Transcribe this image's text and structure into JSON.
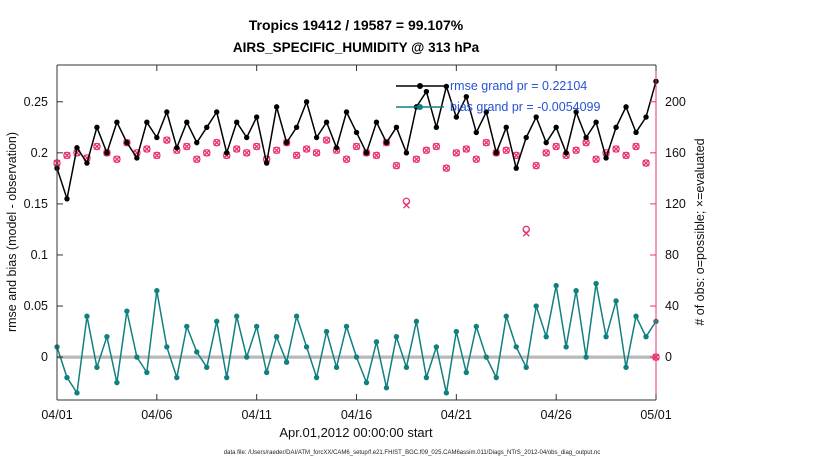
{
  "figure": {
    "footer": "data file: /Users/raeder/DAI/ATM_forcXX/CAM6_setup/f.e21.FHIST_BGC.f09_025.CAM6assim.011/Diags_NTrS_2012-04/obs_diag_output.nc"
  },
  "chart_data": {
    "type": "line",
    "title": "Tropics 19412 / 19587 = 99.107%",
    "subtitle": "AIRS_SPECIFIC_HUMIDITY @ 313 hPa",
    "xlabel": "Apr.01,2012 00:00:00 start",
    "ylabel_left": "rmse and bias (model - observation)",
    "ylabel_right": "# of obs: o=possible; ×=evaluated",
    "xlim_days": [
      0,
      30
    ],
    "x_step_days": 0.5,
    "x_ticks": {
      "days": [
        0,
        5,
        10,
        15,
        20,
        25,
        30
      ],
      "labels": [
        "04/01",
        "04/06",
        "04/11",
        "04/16",
        "04/21",
        "04/26",
        "05/01"
      ]
    },
    "y_left": {
      "ticks": [
        0,
        0.05,
        0.1,
        0.15,
        0.2,
        0.25
      ],
      "labels": [
        "0",
        "0.05",
        "0.1",
        "0.15",
        "0.2",
        "0.25"
      ],
      "lim": [
        -0.042,
        0.286
      ]
    },
    "y_right": {
      "ticks": [
        0,
        40,
        80,
        120,
        160,
        200
      ],
      "labels": [
        "0",
        "40",
        "80",
        "120",
        "160",
        "200"
      ],
      "lim": [
        -33.6,
        228.8
      ]
    },
    "legend": [
      {
        "sample": "rmse",
        "label": "rmse grand pr = 0.22104"
      },
      {
        "sample": "bias",
        "label": "bias grand pr = -0.0054099"
      }
    ],
    "colors": {
      "rmse": "#000000",
      "bias": "#128080",
      "obs": "#e8316f",
      "zero_line": "#b9b9b9",
      "legend_text": "#2453d6",
      "axis": "#333333"
    },
    "grid": false,
    "legend_position": "top-right-inside",
    "series": [
      {
        "name": "rmse",
        "axis": "left",
        "marker": "filled-circle",
        "line": true,
        "values": [
          0.185,
          0.155,
          0.205,
          0.19,
          0.225,
          0.2,
          0.23,
          0.21,
          0.195,
          0.23,
          0.215,
          0.24,
          0.205,
          0.23,
          0.21,
          0.225,
          0.24,
          0.2,
          0.23,
          0.215,
          0.235,
          0.19,
          0.245,
          0.21,
          0.225,
          0.25,
          0.215,
          0.23,
          0.205,
          0.24,
          0.22,
          0.2,
          0.23,
          0.21,
          0.225,
          0.2,
          0.245,
          0.26,
          0.225,
          0.265,
          0.235,
          0.255,
          0.22,
          0.24,
          0.2,
          0.225,
          0.185,
          0.215,
          0.235,
          0.21,
          0.225,
          0.2,
          0.24,
          0.215,
          0.23,
          0.195,
          0.225,
          0.245,
          0.22,
          0.235,
          0.27
        ]
      },
      {
        "name": "bias",
        "axis": "left",
        "marker": "filled-circle",
        "line": true,
        "values": [
          0.01,
          -0.02,
          -0.035,
          0.04,
          -0.01,
          0.02,
          -0.025,
          0.045,
          0.0,
          -0.015,
          0.065,
          0.01,
          -0.02,
          0.03,
          0.005,
          -0.01,
          0.035,
          -0.02,
          0.04,
          0.0,
          0.03,
          -0.015,
          0.02,
          -0.005,
          0.04,
          0.01,
          -0.02,
          0.025,
          -0.01,
          0.03,
          0.0,
          -0.025,
          0.015,
          -0.03,
          0.02,
          -0.01,
          0.035,
          -0.02,
          0.01,
          -0.035,
          0.025,
          -0.015,
          0.03,
          0.0,
          -0.02,
          0.04,
          0.01,
          -0.01,
          0.05,
          0.02,
          0.07,
          0.01,
          0.065,
          0.0,
          0.072,
          0.02,
          0.055,
          -0.01,
          0.04,
          0.02,
          0.035
        ]
      },
      {
        "name": "obs_possible",
        "axis": "right",
        "marker": "circle",
        "line": false,
        "values": [
          152,
          158,
          160,
          156,
          165,
          160,
          155,
          168,
          160,
          163,
          158,
          170,
          162,
          165,
          155,
          160,
          168,
          158,
          163,
          160,
          165,
          155,
          162,
          168,
          158,
          163,
          160,
          170,
          162,
          155,
          165,
          160,
          158,
          168,
          150,
          122,
          155,
          162,
          165,
          148,
          160,
          163,
          155,
          168,
          160,
          162,
          158,
          100,
          150,
          160,
          165,
          158,
          162,
          168,
          155,
          160,
          163,
          158,
          165,
          152,
          0
        ]
      },
      {
        "name": "obs_evaluated",
        "axis": "right",
        "marker": "x",
        "line": false,
        "values": [
          152,
          158,
          160,
          156,
          165,
          160,
          155,
          168,
          160,
          163,
          158,
          170,
          162,
          165,
          155,
          160,
          168,
          158,
          163,
          160,
          165,
          155,
          162,
          168,
          158,
          163,
          160,
          170,
          162,
          155,
          165,
          160,
          158,
          168,
          150,
          119,
          155,
          162,
          165,
          148,
          160,
          163,
          155,
          168,
          160,
          162,
          158,
          97,
          150,
          160,
          165,
          158,
          162,
          168,
          155,
          160,
          163,
          158,
          165,
          152,
          0
        ]
      }
    ]
  }
}
